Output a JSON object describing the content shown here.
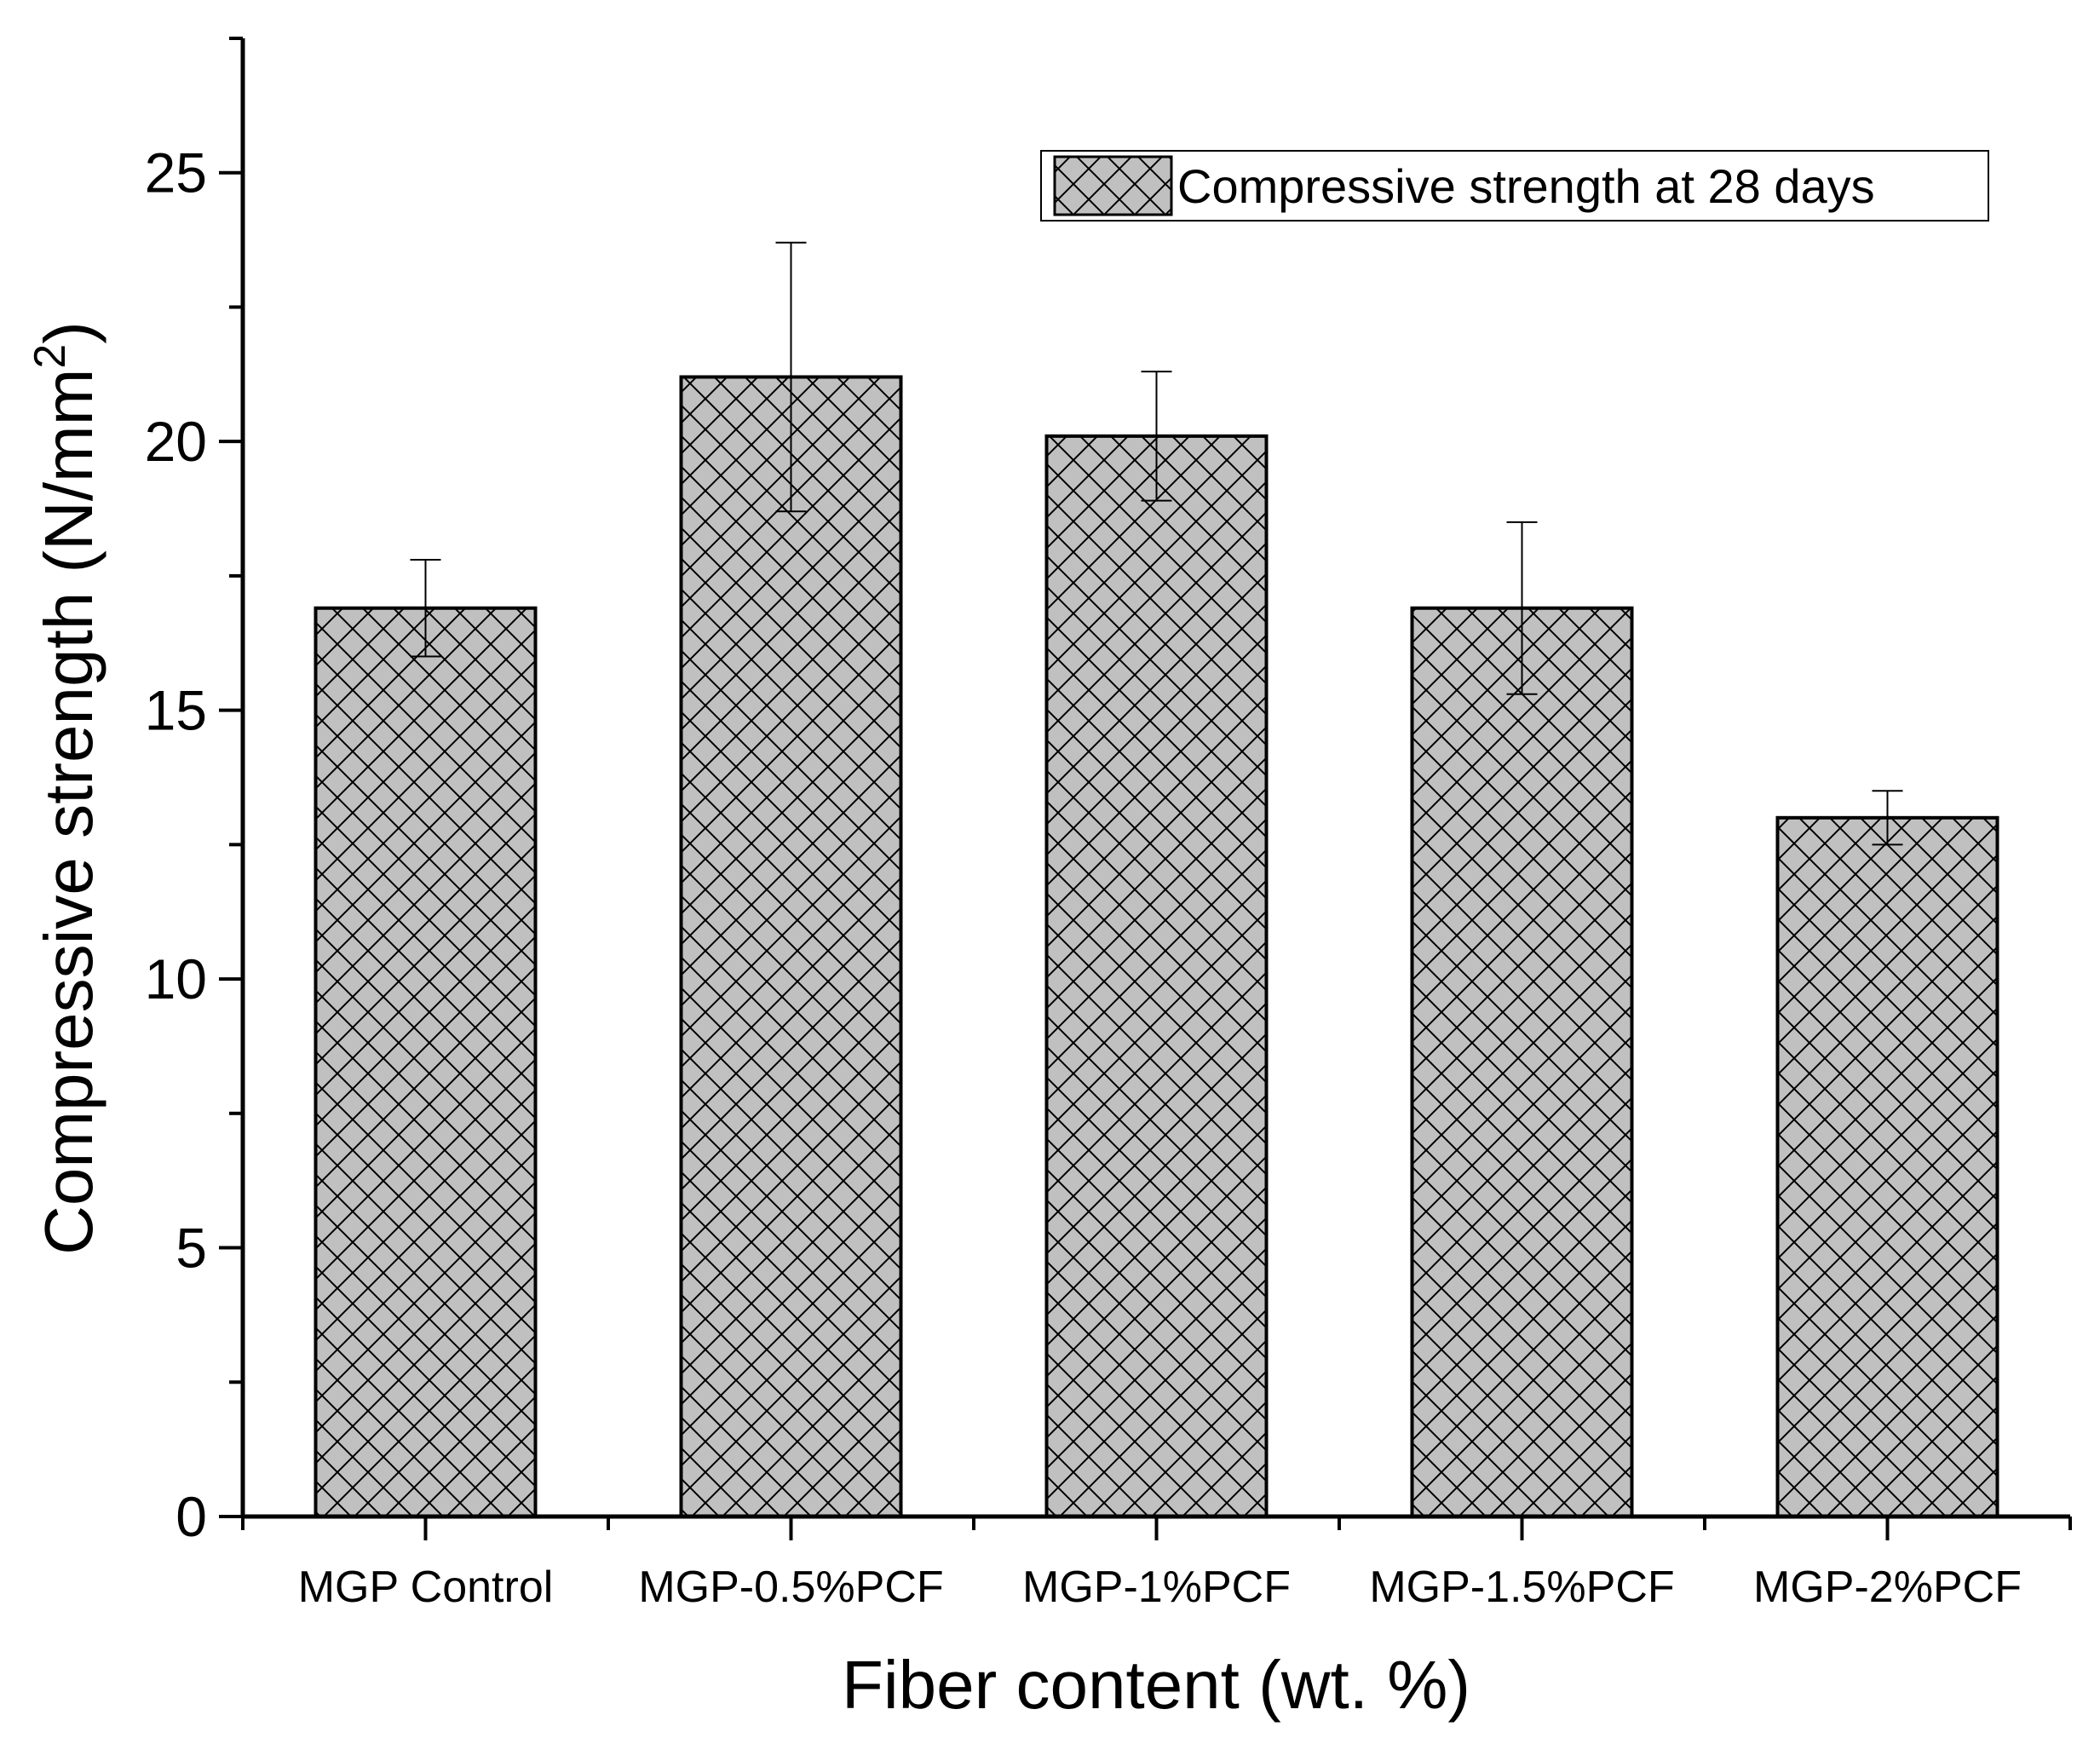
{
  "chart_data": {
    "type": "bar",
    "title": "",
    "xlabel": "Fiber content (wt. %)",
    "ylabel": "Compressive strength (N/mm",
    "ylabel_sup": "2",
    "ylabel_close": ")",
    "ylim": [
      0,
      27.5
    ],
    "yticks": [
      0,
      5,
      10,
      15,
      20,
      25
    ],
    "grid": false,
    "legend_position": "top-right",
    "categories": [
      "MGP Control",
      "MGP-0.5%PCF",
      "MGP-1%PCF",
      "MGP-1.5%PCF",
      "MGP-2%PCF"
    ],
    "series": [
      {
        "name": "Compressive strength at 28 days",
        "values": [
          16.9,
          21.2,
          20.1,
          16.9,
          13.0
        ],
        "error_upper": [
          17.8,
          23.7,
          21.3,
          18.5,
          13.5
        ],
        "error_lower": [
          16.0,
          18.7,
          18.9,
          15.3,
          12.5
        ],
        "fill_color": "#c0c0c0",
        "pattern": "crosshatch"
      }
    ]
  }
}
